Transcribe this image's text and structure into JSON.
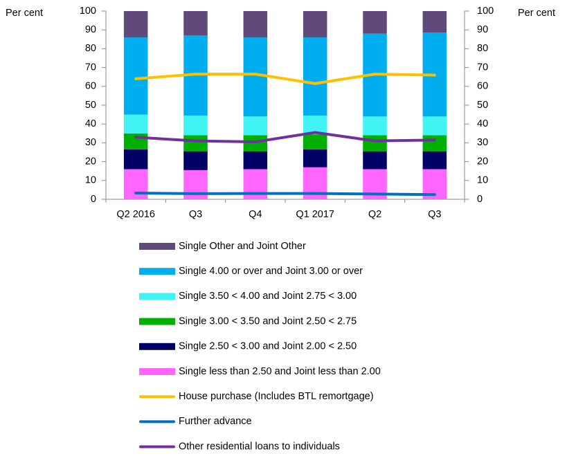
{
  "chart_data": {
    "type": "bar",
    "y_label": "Per cent",
    "y2_label": "Per cent",
    "categories": [
      "Q2 2016",
      "Q3",
      "Q4",
      "Q1 2017",
      "Q2",
      "Q3"
    ],
    "stacked": true,
    "series": [
      {
        "name": "Single less than 2.50 and Joint less than 2.00",
        "type": "bar",
        "color": "#ff66ff",
        "values": [
          16,
          15.5,
          16,
          17,
          16,
          16
        ]
      },
      {
        "name": "Single 2.50 < 3.00 and Joint 2.00 < 2.50",
        "type": "bar",
        "color": "#000066",
        "values": [
          10.5,
          10,
          9.5,
          9.5,
          9.5,
          9.5
        ]
      },
      {
        "name": "Single 3.00 < 3.50 and Joint 2.50 < 2.75",
        "type": "bar",
        "color": "#00b000",
        "values": [
          8.5,
          8.5,
          8.5,
          8,
          8.5,
          8.5
        ]
      },
      {
        "name": "Single 3.50 < 4.00 and Joint 2.75 < 3.00",
        "type": "bar",
        "color": "#40f4f4",
        "values": [
          10,
          10.5,
          10,
          10,
          10,
          10
        ]
      },
      {
        "name": "Single 4.00 or over and Joint 3.00 or over",
        "type": "bar",
        "color": "#00aeef",
        "values": [
          41,
          42.5,
          42,
          41.5,
          44,
          44.5
        ]
      },
      {
        "name": "Single Other and Joint Other",
        "type": "bar",
        "color": "#604a7b",
        "values": [
          14,
          13,
          14,
          14,
          12,
          11.5
        ]
      },
      {
        "name": "House purchase (Includes BTL remortgage)",
        "type": "line",
        "color": "#ffc000",
        "values": [
          64,
          66.5,
          66.5,
          61.5,
          66.5,
          66
        ]
      },
      {
        "name": "Further advance",
        "type": "line",
        "color": "#0070c0",
        "values": [
          3.3,
          3,
          3.1,
          3.1,
          2.8,
          2.5
        ]
      },
      {
        "name": "Other residential loans to individuals",
        "type": "line",
        "color": "#7030a0",
        "values": [
          33,
          31,
          30.5,
          35.5,
          31,
          31.5
        ]
      }
    ],
    "ylim": [
      0,
      100
    ],
    "yticks": [
      0,
      10,
      20,
      30,
      40,
      50,
      60,
      70,
      80,
      90,
      100
    ],
    "y2lim": [
      0,
      100
    ],
    "y2ticks": [
      0,
      10,
      20,
      30,
      40,
      50,
      60,
      70,
      80,
      90,
      100
    ],
    "grid": false
  }
}
